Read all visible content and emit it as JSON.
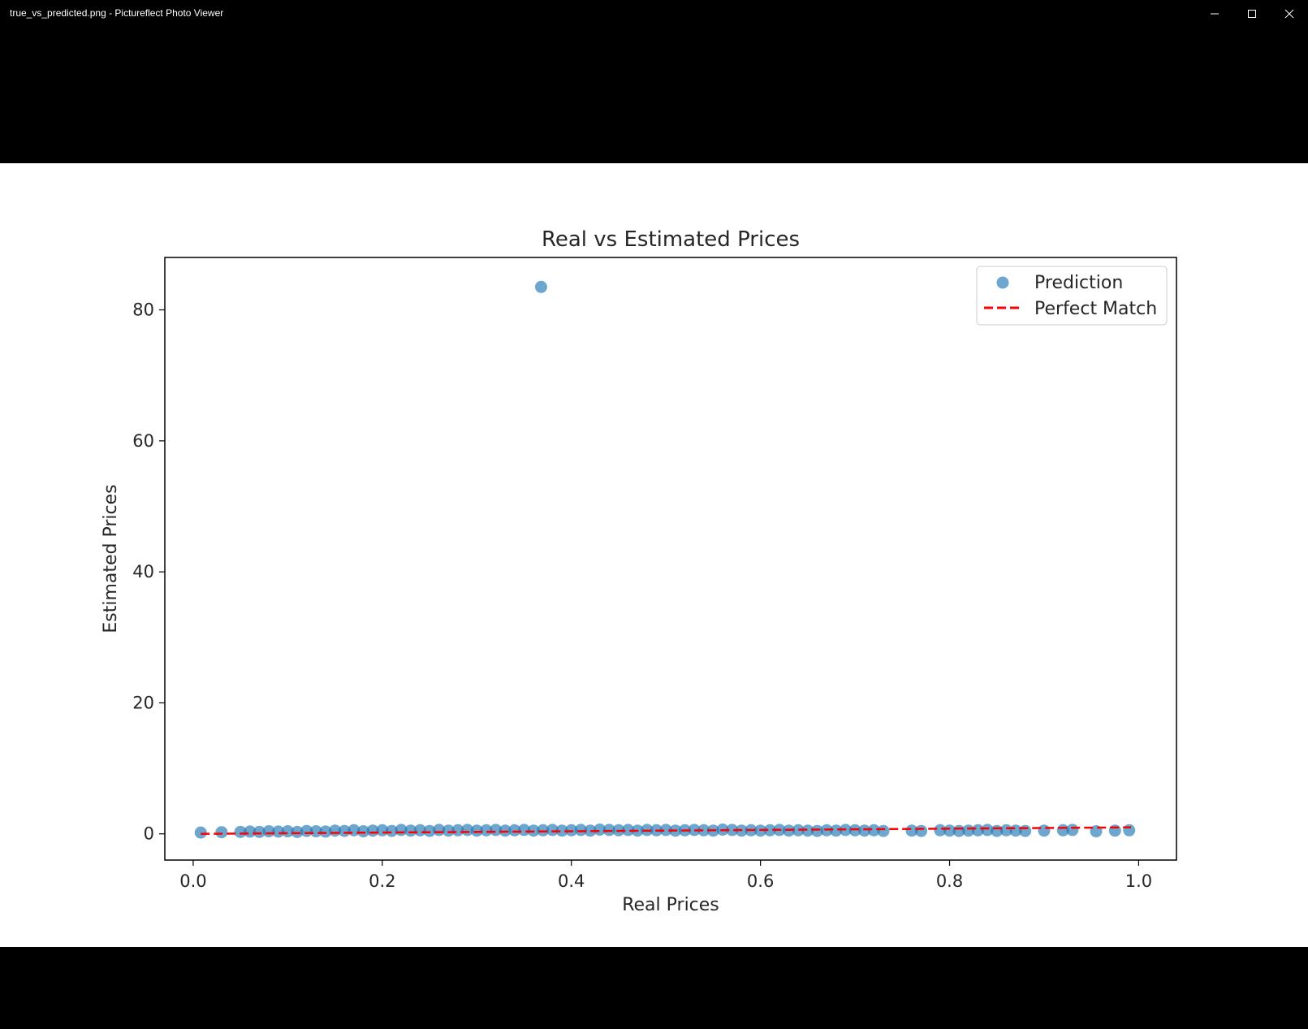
{
  "window": {
    "title": "true_vs_predicted.png - Pictureflect Photo Viewer",
    "minimize_icon": "minimize-icon",
    "maximize_icon": "maximize-icon",
    "close_icon": "close-icon"
  },
  "chart_data": {
    "type": "scatter",
    "title": "Real vs Estimated Prices",
    "xlabel": "Real Prices",
    "ylabel": "Estimated Prices",
    "xlim": [
      -0.03,
      1.04
    ],
    "ylim": [
      -4,
      88
    ],
    "xticks": [
      0.0,
      0.2,
      0.4,
      0.6,
      0.8,
      1.0
    ],
    "xtick_labels": [
      "0.0",
      "0.2",
      "0.4",
      "0.6",
      "0.8",
      "1.0"
    ],
    "yticks": [
      0,
      20,
      40,
      60,
      80
    ],
    "ytick_labels": [
      "0",
      "20",
      "40",
      "60",
      "80"
    ],
    "grid": false,
    "legend": {
      "position": "top-right",
      "entries": [
        "Prediction",
        "Perfect Match"
      ]
    },
    "colors": {
      "points": "#1f77b4",
      "line": "#ff0000"
    },
    "series": [
      {
        "name": "Prediction",
        "kind": "scatter",
        "points": [
          [
            0.008,
            0.2
          ],
          [
            0.03,
            0.25
          ],
          [
            0.05,
            0.3
          ],
          [
            0.06,
            0.35
          ],
          [
            0.07,
            0.3
          ],
          [
            0.08,
            0.4
          ],
          [
            0.09,
            0.35
          ],
          [
            0.1,
            0.4
          ],
          [
            0.11,
            0.3
          ],
          [
            0.12,
            0.45
          ],
          [
            0.13,
            0.4
          ],
          [
            0.14,
            0.35
          ],
          [
            0.15,
            0.5
          ],
          [
            0.16,
            0.45
          ],
          [
            0.17,
            0.55
          ],
          [
            0.18,
            0.4
          ],
          [
            0.19,
            0.5
          ],
          [
            0.2,
            0.55
          ],
          [
            0.21,
            0.45
          ],
          [
            0.22,
            0.6
          ],
          [
            0.23,
            0.5
          ],
          [
            0.24,
            0.55
          ],
          [
            0.25,
            0.45
          ],
          [
            0.26,
            0.6
          ],
          [
            0.27,
            0.5
          ],
          [
            0.28,
            0.55
          ],
          [
            0.29,
            0.6
          ],
          [
            0.3,
            0.5
          ],
          [
            0.31,
            0.55
          ],
          [
            0.32,
            0.6
          ],
          [
            0.33,
            0.5
          ],
          [
            0.34,
            0.55
          ],
          [
            0.35,
            0.6
          ],
          [
            0.36,
            0.5
          ],
          [
            0.368,
            83.5
          ],
          [
            0.37,
            0.55
          ],
          [
            0.38,
            0.6
          ],
          [
            0.39,
            0.5
          ],
          [
            0.4,
            0.55
          ],
          [
            0.41,
            0.6
          ],
          [
            0.42,
            0.5
          ],
          [
            0.43,
            0.65
          ],
          [
            0.44,
            0.6
          ],
          [
            0.45,
            0.55
          ],
          [
            0.46,
            0.6
          ],
          [
            0.47,
            0.5
          ],
          [
            0.48,
            0.6
          ],
          [
            0.49,
            0.55
          ],
          [
            0.5,
            0.6
          ],
          [
            0.51,
            0.5
          ],
          [
            0.52,
            0.55
          ],
          [
            0.53,
            0.6
          ],
          [
            0.54,
            0.55
          ],
          [
            0.55,
            0.5
          ],
          [
            0.56,
            0.65
          ],
          [
            0.57,
            0.6
          ],
          [
            0.58,
            0.5
          ],
          [
            0.59,
            0.55
          ],
          [
            0.6,
            0.5
          ],
          [
            0.61,
            0.55
          ],
          [
            0.62,
            0.6
          ],
          [
            0.63,
            0.5
          ],
          [
            0.64,
            0.55
          ],
          [
            0.65,
            0.5
          ],
          [
            0.66,
            0.45
          ],
          [
            0.67,
            0.55
          ],
          [
            0.68,
            0.5
          ],
          [
            0.69,
            0.6
          ],
          [
            0.7,
            0.55
          ],
          [
            0.71,
            0.5
          ],
          [
            0.72,
            0.55
          ],
          [
            0.73,
            0.45
          ],
          [
            0.76,
            0.5
          ],
          [
            0.77,
            0.45
          ],
          [
            0.79,
            0.55
          ],
          [
            0.8,
            0.5
          ],
          [
            0.81,
            0.45
          ],
          [
            0.82,
            0.5
          ],
          [
            0.83,
            0.55
          ],
          [
            0.84,
            0.6
          ],
          [
            0.85,
            0.45
          ],
          [
            0.86,
            0.55
          ],
          [
            0.87,
            0.5
          ],
          [
            0.88,
            0.45
          ],
          [
            0.9,
            0.5
          ],
          [
            0.92,
            0.55
          ],
          [
            0.93,
            0.6
          ],
          [
            0.955,
            0.4
          ],
          [
            0.975,
            0.5
          ],
          [
            0.99,
            0.55
          ]
        ]
      },
      {
        "name": "Perfect Match",
        "kind": "line",
        "style": "dashed",
        "points": [
          [
            0.008,
            0.008
          ],
          [
            0.992,
            0.992
          ]
        ]
      }
    ]
  }
}
